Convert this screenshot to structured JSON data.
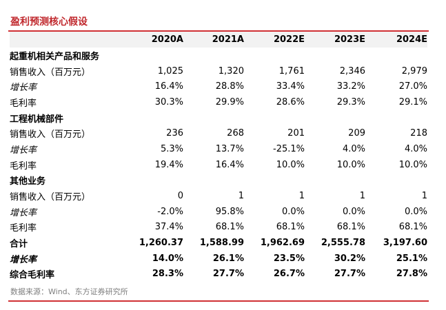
{
  "title": "盈利预测核心假设",
  "columns": [
    "",
    "2020A",
    "2021A",
    "2022E",
    "2023E",
    "2024E"
  ],
  "rows": [
    {
      "type": "section",
      "label": "起重机相关产品和服务"
    },
    {
      "type": "data",
      "label": "销售收入（百万元）",
      "values": [
        "1,025",
        "1,320",
        "1,761",
        "2,346",
        "2,979"
      ]
    },
    {
      "type": "growth",
      "label": "增长率",
      "values": [
        "16.4%",
        "28.8%",
        "33.4%",
        "33.2%",
        "27.0%"
      ]
    },
    {
      "type": "data",
      "label": "毛利率",
      "values": [
        "30.3%",
        "29.9%",
        "28.6%",
        "29.3%",
        "29.1%"
      ]
    },
    {
      "type": "section",
      "label": "工程机械部件"
    },
    {
      "type": "data",
      "label": "销售收入（百万元）",
      "values": [
        "236",
        "268",
        "201",
        "209",
        "218"
      ]
    },
    {
      "type": "growth",
      "label": "增长率",
      "values": [
        "5.3%",
        "13.7%",
        "-25.1%",
        "4.0%",
        "4.0%"
      ]
    },
    {
      "type": "data",
      "label": "毛利率",
      "values": [
        "19.4%",
        "16.4%",
        "10.0%",
        "10.0%",
        "10.0%"
      ]
    },
    {
      "type": "section",
      "label": "其他业务"
    },
    {
      "type": "data",
      "label": "销售收入（百万元）",
      "values": [
        "0",
        "1",
        "1",
        "1",
        "1"
      ]
    },
    {
      "type": "growth",
      "label": "增长率",
      "values": [
        "-2.0%",
        "95.8%",
        "0.0%",
        "0.0%",
        "0.0%"
      ]
    },
    {
      "type": "data",
      "label": "毛利率",
      "values": [
        "37.4%",
        "68.1%",
        "68.1%",
        "68.1%",
        "68.1%"
      ]
    },
    {
      "type": "total",
      "label": "合计",
      "values": [
        "1,260.37",
        "1,588.99",
        "1,962.69",
        "2,555.78",
        "3,197.60"
      ]
    },
    {
      "type": "total-growth",
      "label": "增长率",
      "values": [
        "14.0%",
        "26.1%",
        "23.5%",
        "30.2%",
        "25.1%"
      ]
    },
    {
      "type": "total",
      "label": "综合毛利率",
      "values": [
        "28.3%",
        "27.7%",
        "26.7%",
        "27.7%",
        "27.8%"
      ]
    }
  ],
  "source": "数据来源：Wind、东方证券研究所",
  "colors": {
    "accent": "#d03034",
    "title": "#c0282d",
    "header_bg": "#f2f2f2",
    "source": "#7f7f7f"
  }
}
